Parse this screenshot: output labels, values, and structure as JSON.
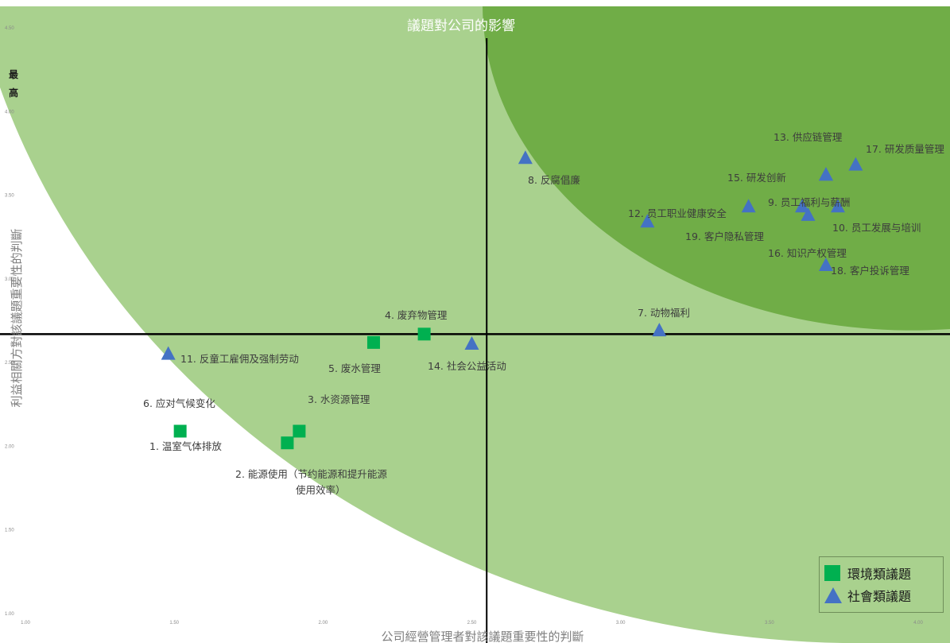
{
  "chart_data": {
    "type": "scatter",
    "title": "議題對公司的影響",
    "xlabel": "公司經營管理者對該議題重要性的判斷",
    "ylabel": "利益相關方對該議題重要性的判斷",
    "top_marker": [
      "最",
      "高"
    ],
    "xlim": [
      1.0,
      4.1
    ],
    "ylim": [
      1.0,
      4.6
    ],
    "x_ticks": [
      "1.00",
      "1.50",
      "2.00",
      "2.50",
      "3.00",
      "3.50",
      "4.00"
    ],
    "y_ticks": [
      "1.00",
      "1.50",
      "2.00",
      "2.50",
      "3.00",
      "3.50",
      "4.00",
      "4.50"
    ],
    "quadrant_lines": {
      "x": 2.55,
      "y": 2.67
    },
    "grid": false,
    "legend_position": "bottom-right",
    "colors": {
      "environment": "#00b050",
      "social": "#4472c4",
      "zone_light": "#a9d18e",
      "zone_dark": "#70ad47"
    },
    "series": [
      {
        "name": "環境類議題",
        "marker": "square",
        "points": [
          {
            "label": "1.  温室气体排放",
            "x": 1.52,
            "y": 2.09
          },
          {
            "label": "2.  能源使用（节约能源和提升能源",
            "label2": "使用效率）",
            "x": 1.92,
            "y": 2.09
          },
          {
            "label": "3.  水资源管理",
            "x": 1.88,
            "y": 2.02
          },
          {
            "label": "4.  废弃物管理",
            "x": 2.34,
            "y": 2.67
          },
          {
            "label": "5.  废水管理",
            "x": 2.17,
            "y": 2.62
          }
        ]
      },
      {
        "name": "社會類議題",
        "marker": "triangle",
        "points": [
          {
            "label": "6.  应对气候变化",
            "x": 1.51,
            "y": 2.09,
            "hidden": true
          },
          {
            "label": "7.  动物福利",
            "x": 3.13,
            "y": 2.69
          },
          {
            "label": "8.  反腐倡廉",
            "x": 2.68,
            "y": 3.72
          },
          {
            "label": "9.  员工福利与薪酬",
            "x": 3.61,
            "y": 3.43
          },
          {
            "label": "10. 员工发展与培训",
            "x": 3.73,
            "y": 3.43
          },
          {
            "label": "11. 反童工雇佣及强制劳动",
            "x": 1.48,
            "y": 2.55
          },
          {
            "label": "12. 员工职业健康安全",
            "x": 3.09,
            "y": 3.34
          },
          {
            "label": "13. 供应链管理",
            "x": 3.69,
            "y": 3.62
          },
          {
            "label": "14. 社会公益活动",
            "x": 2.5,
            "y": 2.61
          },
          {
            "label": "15. 研发创新",
            "x": 3.69,
            "y": 3.62
          },
          {
            "label": "16. 知识产权管理",
            "x": 3.63,
            "y": 3.38
          },
          {
            "label": "17. 研发质量管理",
            "x": 3.79,
            "y": 3.68
          },
          {
            "label": "18. 客户投诉管理",
            "x": 3.69,
            "y": 3.08
          },
          {
            "label": "19. 客户隐私管理",
            "x": 3.43,
            "y": 3.43
          }
        ]
      }
    ]
  }
}
